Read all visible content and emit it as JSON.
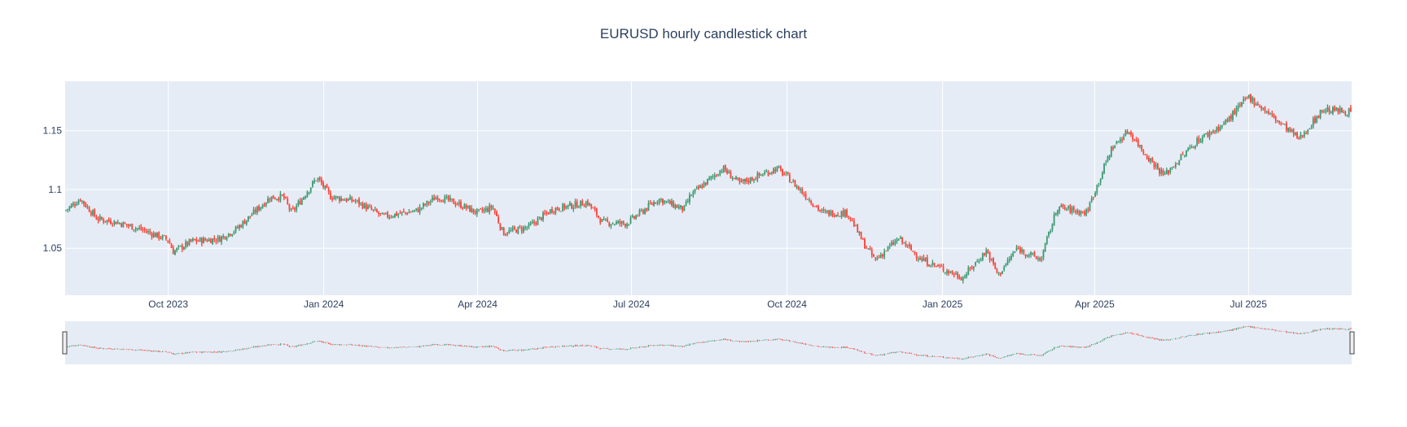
{
  "chart_data": {
    "type": "candlestick",
    "title": "EURUSD hourly candlestick chart",
    "xlabel": "",
    "ylabel": "",
    "x_range": [
      "2023-08-01",
      "2025-08-31"
    ],
    "ylim": [
      1.01,
      1.192
    ],
    "x_ticks": [
      {
        "date": "2023-10-01",
        "label": "Oct 2023"
      },
      {
        "date": "2024-01-01",
        "label": "Jan 2024"
      },
      {
        "date": "2024-04-01",
        "label": "Apr 2024"
      },
      {
        "date": "2024-07-01",
        "label": "Jul 2024"
      },
      {
        "date": "2024-10-01",
        "label": "Oct 2024"
      },
      {
        "date": "2025-01-01",
        "label": "Jan 2025"
      },
      {
        "date": "2025-04-01",
        "label": "Apr 2025"
      },
      {
        "date": "2025-07-01",
        "label": "Jul 2025"
      }
    ],
    "y_ticks": [
      {
        "value": 1.05,
        "label": "1.05"
      },
      {
        "value": 1.1,
        "label": "1.1"
      },
      {
        "value": 1.15,
        "label": "1.15"
      }
    ],
    "grid": true,
    "rangeslider": true,
    "increasing_color": "#3d9970",
    "decreasing_color": "#ff4136",
    "price_path": [
      [
        "2023-08-01",
        1.082
      ],
      [
        "2023-08-10",
        1.092
      ],
      [
        "2023-08-20",
        1.075
      ],
      [
        "2023-09-01",
        1.072
      ],
      [
        "2023-09-15",
        1.066
      ],
      [
        "2023-10-01",
        1.057
      ],
      [
        "2023-10-04",
        1.047
      ],
      [
        "2023-10-15",
        1.056
      ],
      [
        "2023-10-31",
        1.058
      ],
      [
        "2023-11-10",
        1.066
      ],
      [
        "2023-11-30",
        1.093
      ],
      [
        "2023-12-08",
        1.094
      ],
      [
        "2023-12-13",
        1.08
      ],
      [
        "2023-12-28",
        1.11
      ],
      [
        "2024-01-05",
        1.094
      ],
      [
        "2024-01-20",
        1.09
      ],
      [
        "2024-02-05",
        1.077
      ],
      [
        "2024-02-25",
        1.082
      ],
      [
        "2024-03-08",
        1.094
      ],
      [
        "2024-03-20",
        1.088
      ],
      [
        "2024-04-01",
        1.08
      ],
      [
        "2024-04-10",
        1.085
      ],
      [
        "2024-04-16",
        1.063
      ],
      [
        "2024-05-01",
        1.068
      ],
      [
        "2024-05-15",
        1.083
      ],
      [
        "2024-06-05",
        1.089
      ],
      [
        "2024-06-14",
        1.072
      ],
      [
        "2024-06-28",
        1.071
      ],
      [
        "2024-07-17",
        1.092
      ],
      [
        "2024-08-01",
        1.083
      ],
      [
        "2024-08-05",
        1.095
      ],
      [
        "2024-08-24",
        1.118
      ],
      [
        "2024-09-03",
        1.105
      ],
      [
        "2024-09-25",
        1.118
      ],
      [
        "2024-10-01",
        1.111
      ],
      [
        "2024-10-22",
        1.08
      ],
      [
        "2024-11-06",
        1.08
      ],
      [
        "2024-11-15",
        1.055
      ],
      [
        "2024-11-22",
        1.04
      ],
      [
        "2024-12-06",
        1.058
      ],
      [
        "2024-12-20",
        1.04
      ],
      [
        "2025-01-13",
        1.025
      ],
      [
        "2025-01-27",
        1.048
      ],
      [
        "2025-02-03",
        1.027
      ],
      [
        "2025-02-14",
        1.05
      ],
      [
        "2025-02-28",
        1.04
      ],
      [
        "2025-03-10",
        1.085
      ],
      [
        "2025-03-27",
        1.08
      ],
      [
        "2025-04-11",
        1.135
      ],
      [
        "2025-04-21",
        1.15
      ],
      [
        "2025-05-01",
        1.13
      ],
      [
        "2025-05-12",
        1.112
      ],
      [
        "2025-06-01",
        1.142
      ],
      [
        "2025-06-16",
        1.155
      ],
      [
        "2025-07-01",
        1.179
      ],
      [
        "2025-07-16",
        1.161
      ],
      [
        "2025-07-31",
        1.143
      ],
      [
        "2025-08-14",
        1.168
      ],
      [
        "2025-08-31",
        1.166
      ]
    ]
  }
}
